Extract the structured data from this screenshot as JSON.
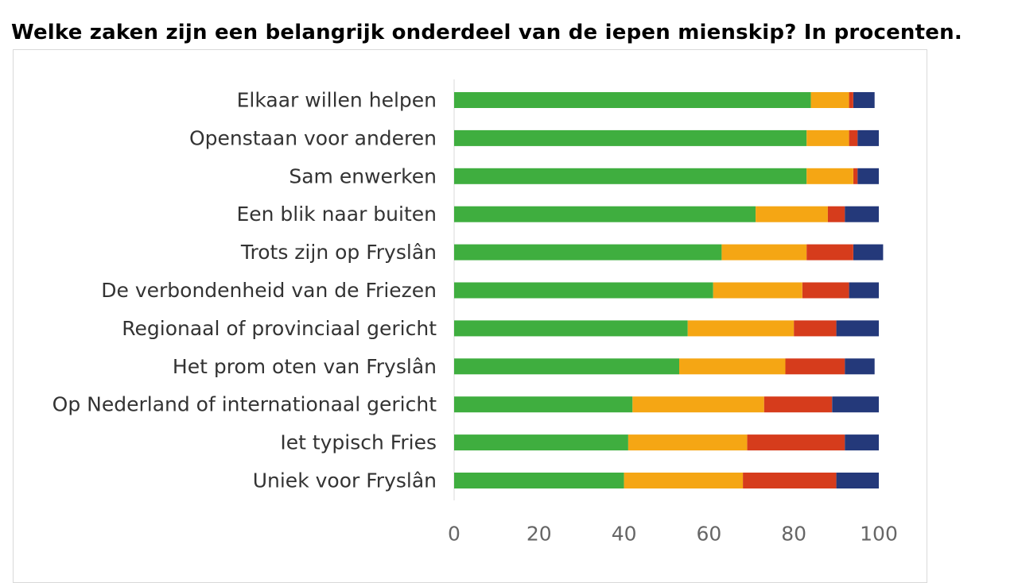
{
  "title": "Welke zaken zijn een belangrijk onderdeel van de iepen mienskip? In procenten.",
  "chart_data": {
    "type": "bar",
    "orientation": "horizontal",
    "stacked": true,
    "categories": [
      "Elkaar willen helpen",
      "Openstaan voor anderen",
      "Sam enwerken",
      "Een blik naar buiten",
      "Trots zijn op Fryslân",
      "De verbondenheid van de Friezen",
      "Regionaal of provinciaal gericht",
      "Het prom oten van Fryslân",
      "Op Nederland of internationaal gericht",
      "Iet typisch Fries",
      "Uniek voor Fryslân"
    ],
    "series": [
      {
        "color": "#3fae3f",
        "values": [
          84,
          83,
          83,
          71,
          63,
          61,
          55,
          53,
          42,
          41,
          40
        ]
      },
      {
        "color": "#f5a614",
        "values": [
          9,
          10,
          11,
          17,
          20,
          21,
          25,
          25,
          31,
          28,
          28
        ]
      },
      {
        "color": "#d63c1c",
        "values": [
          1,
          2,
          1,
          4,
          11,
          11,
          10,
          14,
          16,
          23,
          22
        ]
      },
      {
        "color": "#24397a",
        "values": [
          5,
          5,
          5,
          8,
          7,
          7,
          10,
          7,
          11,
          8,
          10
        ]
      }
    ],
    "xlim": [
      0,
      100
    ],
    "xticks": [
      0,
      20,
      40,
      60,
      80,
      100
    ],
    "xlabel": "",
    "ylabel": "",
    "grid": false,
    "legend": "none"
  }
}
